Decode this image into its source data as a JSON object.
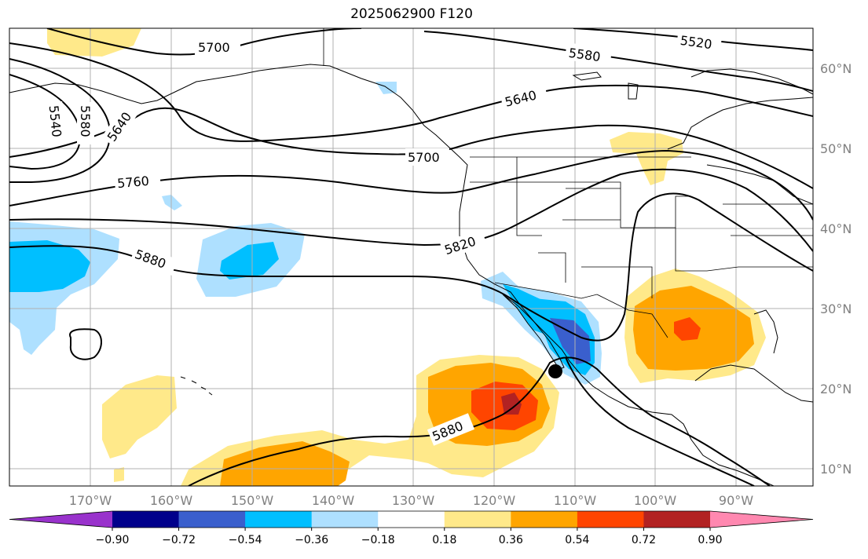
{
  "title": "2025062900 F120",
  "lon_labels": [
    "170°W",
    "160°W",
    "150°W",
    "140°W",
    "130°W",
    "120°W",
    "110°W",
    "100°W",
    "90°W"
  ],
  "lat_labels": [
    "60°N",
    "50°N",
    "40°N",
    "30°N",
    "20°N",
    "10°N"
  ],
  "colorbar": {
    "ticks": [
      "−0.90",
      "−0.72",
      "−0.54",
      "−0.36",
      "−0.18",
      "0.18",
      "0.36",
      "0.54",
      "0.72",
      "0.90"
    ],
    "colors": [
      "#9932cc",
      "#00008b",
      "#3a5fcd",
      "#00bfff",
      "#aee0ff",
      "#ffffff",
      "#ffe98a",
      "#ffa500",
      "#ff4500",
      "#b22222",
      "#ff88b0"
    ]
  },
  "contour_labels": [
    "5700",
    "5520",
    "5580",
    "5640",
    "5540",
    "5580",
    "5640",
    "5700",
    "5760",
    "5820",
    "5880",
    "5880"
  ],
  "marker": "storm-center"
}
